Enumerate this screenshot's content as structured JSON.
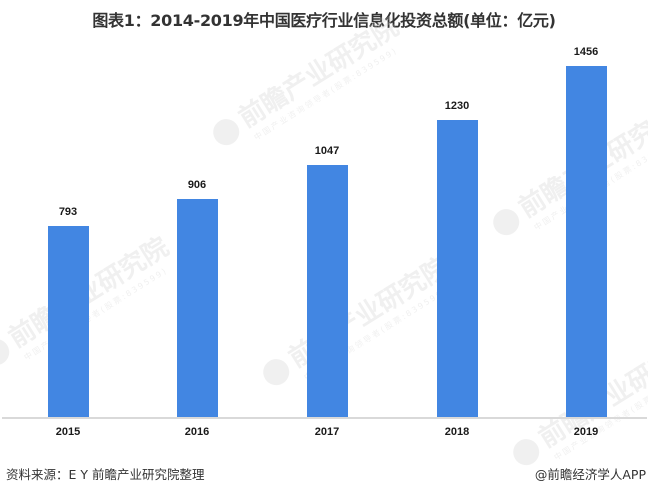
{
  "title": "图表1：2014-2019年中国医疗行业信息化投资总额(单位：亿元)",
  "chart_data": {
    "type": "bar",
    "title": "图表1：2014-2019年中国医疗行业信息化投资总额(单位：亿元)",
    "xlabel": "",
    "ylabel": "亿元",
    "categories": [
      "2015",
      "2016",
      "2017",
      "2018",
      "2019"
    ],
    "values": [
      793,
      906,
      1047,
      1230,
      1456
    ],
    "value_labels": [
      "793",
      "906",
      "1047",
      "1230",
      "1456"
    ],
    "ylim": [
      0,
      1456
    ],
    "grid": false,
    "legend": "none",
    "bar_color": "#4286e2"
  },
  "watermark": {
    "text": "前瞻产业研究院",
    "subtext": "中国产业咨询领导者(股票:839599)"
  },
  "footer": {
    "source": "资料来源：E Y 前瞻产业研究院整理",
    "credit": "@前瞻经济学人APP"
  }
}
